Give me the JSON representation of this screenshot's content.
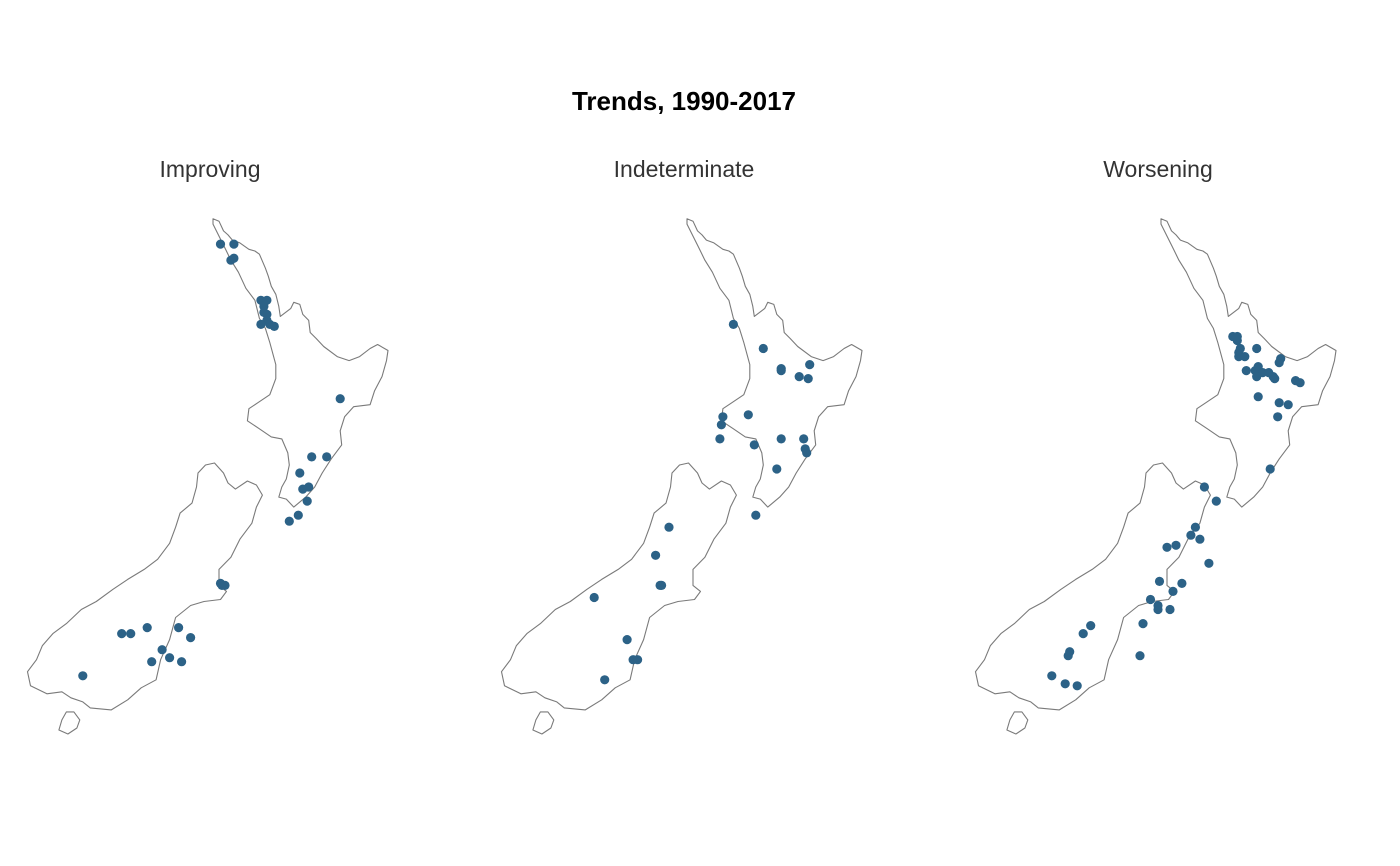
{
  "figure": {
    "title": "Trends, 1990-2017",
    "point_color": "#2c6287",
    "coast_color": "#7a7a7a"
  },
  "panels": [
    {
      "title": "Improving",
      "sites": [
        [
          172.9,
          -35.05
        ],
        [
          173.35,
          -35.05
        ],
        [
          173.35,
          -35.4
        ],
        [
          173.25,
          -35.45
        ],
        [
          174.25,
          -36.45
        ],
        [
          174.45,
          -36.45
        ],
        [
          174.35,
          -36.6
        ],
        [
          174.35,
          -36.75
        ],
        [
          174.45,
          -36.8
        ],
        [
          174.45,
          -36.95
        ],
        [
          174.25,
          -37.05
        ],
        [
          174.55,
          -37.05
        ],
        [
          174.7,
          -37.1
        ],
        [
          176.9,
          -38.9
        ],
        [
          175.95,
          -40.35
        ],
        [
          176.45,
          -40.35
        ],
        [
          175.55,
          -40.75
        ],
        [
          175.85,
          -41.1
        ],
        [
          175.65,
          -41.15
        ],
        [
          175.8,
          -41.45
        ],
        [
          175.5,
          -41.8
        ],
        [
          175.2,
          -41.95
        ],
        [
          172.95,
          -43.55
        ],
        [
          173.05,
          -43.55
        ],
        [
          172.9,
          -43.5
        ],
        [
          169.6,
          -44.75
        ],
        [
          169.9,
          -44.75
        ],
        [
          170.45,
          -44.6
        ],
        [
          171.5,
          -44.6
        ],
        [
          171.9,
          -44.85
        ],
        [
          170.95,
          -45.15
        ],
        [
          171.2,
          -45.35
        ],
        [
          170.6,
          -45.45
        ],
        [
          171.6,
          -45.45
        ],
        [
          168.3,
          -45.8
        ]
      ]
    },
    {
      "title": "Indeterminate",
      "sites": [
        [
          174.2,
          -37.05
        ],
        [
          175.2,
          -37.65
        ],
        [
          176.75,
          -38.05
        ],
        [
          176.4,
          -38.35
        ],
        [
          176.7,
          -38.4
        ],
        [
          175.8,
          -38.15
        ],
        [
          175.8,
          -38.2
        ],
        [
          174.7,
          -39.3
        ],
        [
          173.85,
          -39.35
        ],
        [
          173.8,
          -39.55
        ],
        [
          173.75,
          -39.9
        ],
        [
          174.9,
          -40.05
        ],
        [
          175.8,
          -39.9
        ],
        [
          176.55,
          -39.9
        ],
        [
          176.6,
          -40.15
        ],
        [
          176.65,
          -40.25
        ],
        [
          175.65,
          -40.65
        ],
        [
          174.95,
          -41.8
        ],
        [
          172.05,
          -42.1
        ],
        [
          171.6,
          -42.8
        ],
        [
          171.75,
          -43.55
        ],
        [
          171.8,
          -43.55
        ],
        [
          169.55,
          -43.85
        ],
        [
          170.65,
          -44.9
        ],
        [
          170.85,
          -45.4
        ],
        [
          171.0,
          -45.4
        ],
        [
          169.9,
          -45.9
        ]
      ]
    },
    {
      "title": "Worsening",
      "sites": [
        [
          175.05,
          -37.35
        ],
        [
          175.2,
          -37.35
        ],
        [
          175.2,
          -37.45
        ],
        [
          175.3,
          -37.65
        ],
        [
          175.25,
          -37.75
        ],
        [
          175.25,
          -37.85
        ],
        [
          175.45,
          -37.85
        ],
        [
          175.85,
          -37.65
        ],
        [
          176.65,
          -37.9
        ],
        [
          176.6,
          -38.0
        ],
        [
          175.9,
          -38.1
        ],
        [
          175.5,
          -38.2
        ],
        [
          175.8,
          -38.2
        ],
        [
          176.05,
          -38.25
        ],
        [
          176.25,
          -38.25
        ],
        [
          175.85,
          -38.35
        ],
        [
          176.4,
          -38.35
        ],
        [
          176.45,
          -38.4
        ],
        [
          177.15,
          -38.45
        ],
        [
          177.3,
          -38.5
        ],
        [
          175.9,
          -38.85
        ],
        [
          176.6,
          -39.0
        ],
        [
          176.9,
          -39.05
        ],
        [
          176.55,
          -39.35
        ],
        [
          176.3,
          -40.65
        ],
        [
          174.1,
          -41.1
        ],
        [
          174.5,
          -41.45
        ],
        [
          173.8,
          -42.1
        ],
        [
          173.65,
          -42.3
        ],
        [
          173.95,
          -42.4
        ],
        [
          173.15,
          -42.55
        ],
        [
          172.85,
          -42.6
        ],
        [
          174.25,
          -43.0
        ],
        [
          172.6,
          -43.45
        ],
        [
          173.35,
          -43.5
        ],
        [
          173.05,
          -43.7
        ],
        [
          172.3,
          -43.9
        ],
        [
          172.55,
          -44.05
        ],
        [
          172.55,
          -44.15
        ],
        [
          172.95,
          -44.15
        ],
        [
          172.05,
          -44.5
        ],
        [
          170.3,
          -44.55
        ],
        [
          170.05,
          -44.75
        ],
        [
          169.6,
          -45.2
        ],
        [
          169.55,
          -45.3
        ],
        [
          171.95,
          -45.3
        ],
        [
          169.0,
          -45.8
        ],
        [
          169.45,
          -46.0
        ],
        [
          169.85,
          -46.05
        ]
      ]
    }
  ]
}
